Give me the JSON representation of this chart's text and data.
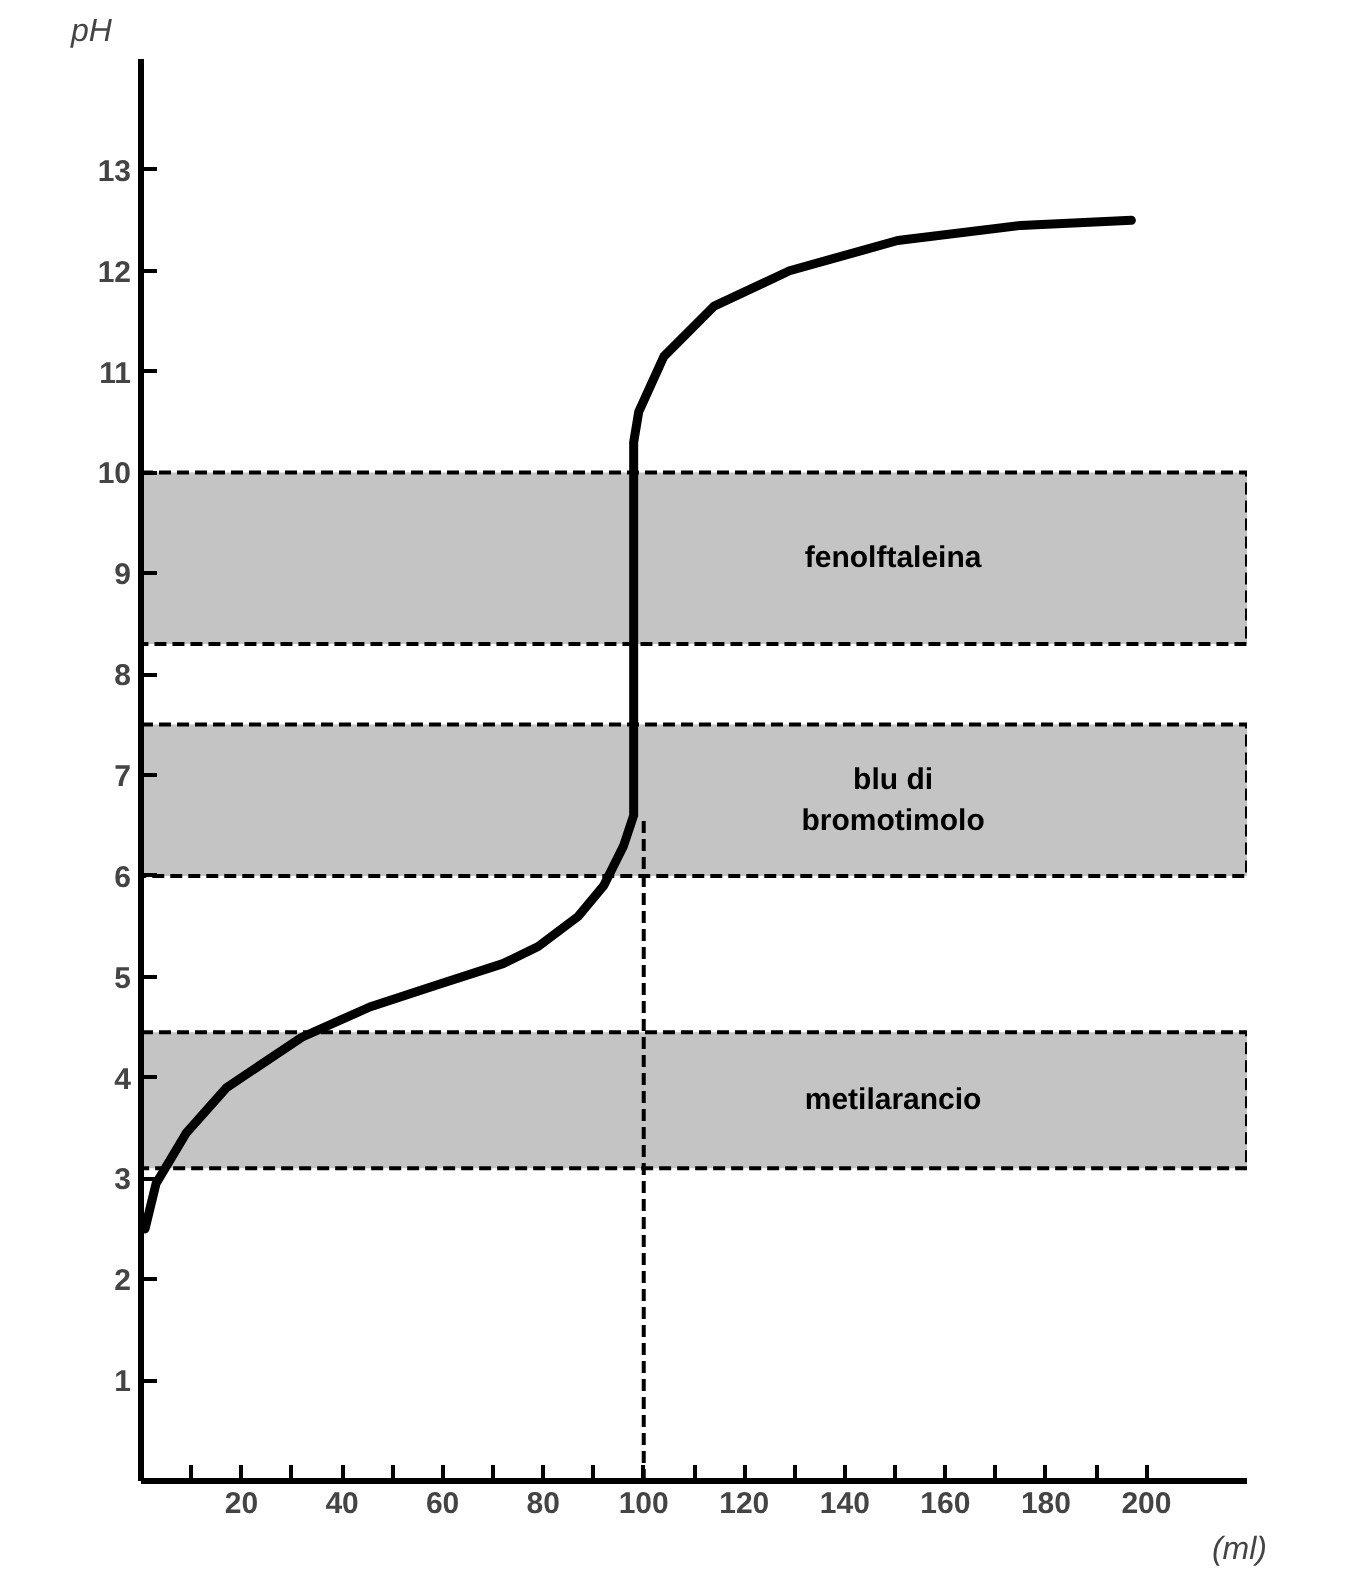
{
  "chart_data": {
    "type": "line",
    "xlabel": "(ml)",
    "ylabel": "pH",
    "xlim": [
      0,
      220
    ],
    "ylim": [
      0,
      14.1
    ],
    "xticks": [
      {
        "value": 10,
        "label": null
      },
      20,
      {
        "value": 30,
        "label": null
      },
      40,
      {
        "value": 50,
        "label": null
      },
      60,
      {
        "value": 70,
        "label": null
      },
      80,
      {
        "value": 90,
        "label": null
      },
      100,
      {
        "value": 110,
        "label": null
      },
      120,
      {
        "value": 130,
        "label": null
      },
      140,
      {
        "value": 150,
        "label": null
      },
      160,
      {
        "value": 170,
        "label": null
      },
      180,
      {
        "value": 190,
        "label": null
      },
      200
    ],
    "yticks": [
      1,
      2,
      3,
      4,
      5,
      6,
      7,
      8,
      9,
      10,
      11,
      12,
      13
    ],
    "series": [
      {
        "color": "#000000",
        "x": [
          0.8,
          3,
          9,
          17,
          32,
          45.5,
          59,
          72,
          79,
          87,
          92,
          96,
          98,
          98,
          99,
          104,
          114,
          129,
          150.5,
          175,
          197
        ],
        "values": [
          2.5,
          2.95,
          3.45,
          3.9,
          4.4,
          4.7,
          4.92,
          5.13,
          5.3,
          5.6,
          5.9,
          6.3,
          6.6,
          10.3,
          10.6,
          11.15,
          11.65,
          12.0,
          12.3,
          12.45,
          12.5
        ]
      }
    ],
    "bands": [
      {
        "axis": "y",
        "from": 8.3,
        "to": 10,
        "label": "fenolftaleina",
        "color": "#c4c4c4"
      },
      {
        "axis": "y",
        "from": 6,
        "to": 7.5,
        "label": "blu di\nbromotimolo",
        "color": "#c4c4c4"
      },
      {
        "axis": "y",
        "from": 3.1,
        "to": 4.45,
        "label": "metilarancio",
        "color": "#c4c4c4"
      }
    ],
    "ref_lines": [
      {
        "axis": "x",
        "value": 100,
        "color": "#000000",
        "line_style": "dashed"
      }
    ],
    "grid": false,
    "marker": "none",
    "line_style": "solid"
  }
}
